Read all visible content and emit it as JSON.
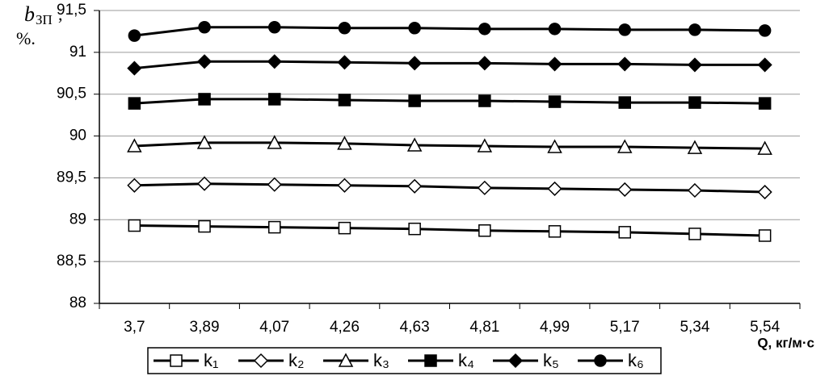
{
  "chart_data": {
    "type": "line",
    "ylabel": {
      "symbol": "b",
      "subscript": "ЗП",
      "suffix": ",",
      "unit": "%."
    },
    "xlabel": "Q, кг/м·с",
    "categories": [
      "3,7",
      "3,89",
      "4,07",
      "4,26",
      "4,63",
      "4,81",
      "4,99",
      "5,17",
      "5,34",
      "5,54"
    ],
    "ylim": [
      88,
      91.5
    ],
    "yticks": [
      88,
      {
        "value": 88.5,
        "label": "88,5"
      },
      89,
      {
        "value": 89.5,
        "label": "89,5"
      },
      90,
      {
        "value": 90.5,
        "label": "90,5"
      },
      91,
      {
        "value": 91.5,
        "label": "91,5"
      }
    ],
    "grid": true,
    "series": [
      {
        "name": "k₁",
        "color": "#000000",
        "marker": "square",
        "filled": false,
        "values": [
          88.93,
          88.92,
          88.91,
          88.9,
          88.89,
          88.87,
          88.86,
          88.85,
          88.83,
          88.81
        ]
      },
      {
        "name": "k₂",
        "color": "#000000",
        "marker": "diamond",
        "filled": false,
        "values": [
          89.41,
          89.43,
          89.42,
          89.41,
          89.4,
          89.38,
          89.37,
          89.36,
          89.35,
          89.33
        ]
      },
      {
        "name": "k₃",
        "color": "#000000",
        "marker": "triangle",
        "filled": false,
        "values": [
          89.88,
          89.92,
          89.92,
          89.91,
          89.89,
          89.88,
          89.87,
          89.87,
          89.86,
          89.85
        ]
      },
      {
        "name": "k₄",
        "color": "#000000",
        "marker": "square",
        "filled": true,
        "values": [
          90.39,
          90.44,
          90.44,
          90.43,
          90.42,
          90.42,
          90.41,
          90.4,
          90.4,
          90.39
        ]
      },
      {
        "name": "k₅",
        "color": "#000000",
        "marker": "diamond",
        "filled": true,
        "values": [
          90.81,
          90.89,
          90.89,
          90.88,
          90.87,
          90.87,
          90.86,
          90.86,
          90.85,
          90.85
        ]
      },
      {
        "name": "k₆",
        "color": "#000000",
        "marker": "circle",
        "filled": true,
        "values": [
          91.2,
          91.3,
          91.3,
          91.29,
          91.29,
          91.28,
          91.28,
          91.27,
          91.27,
          91.26
        ]
      }
    ]
  }
}
